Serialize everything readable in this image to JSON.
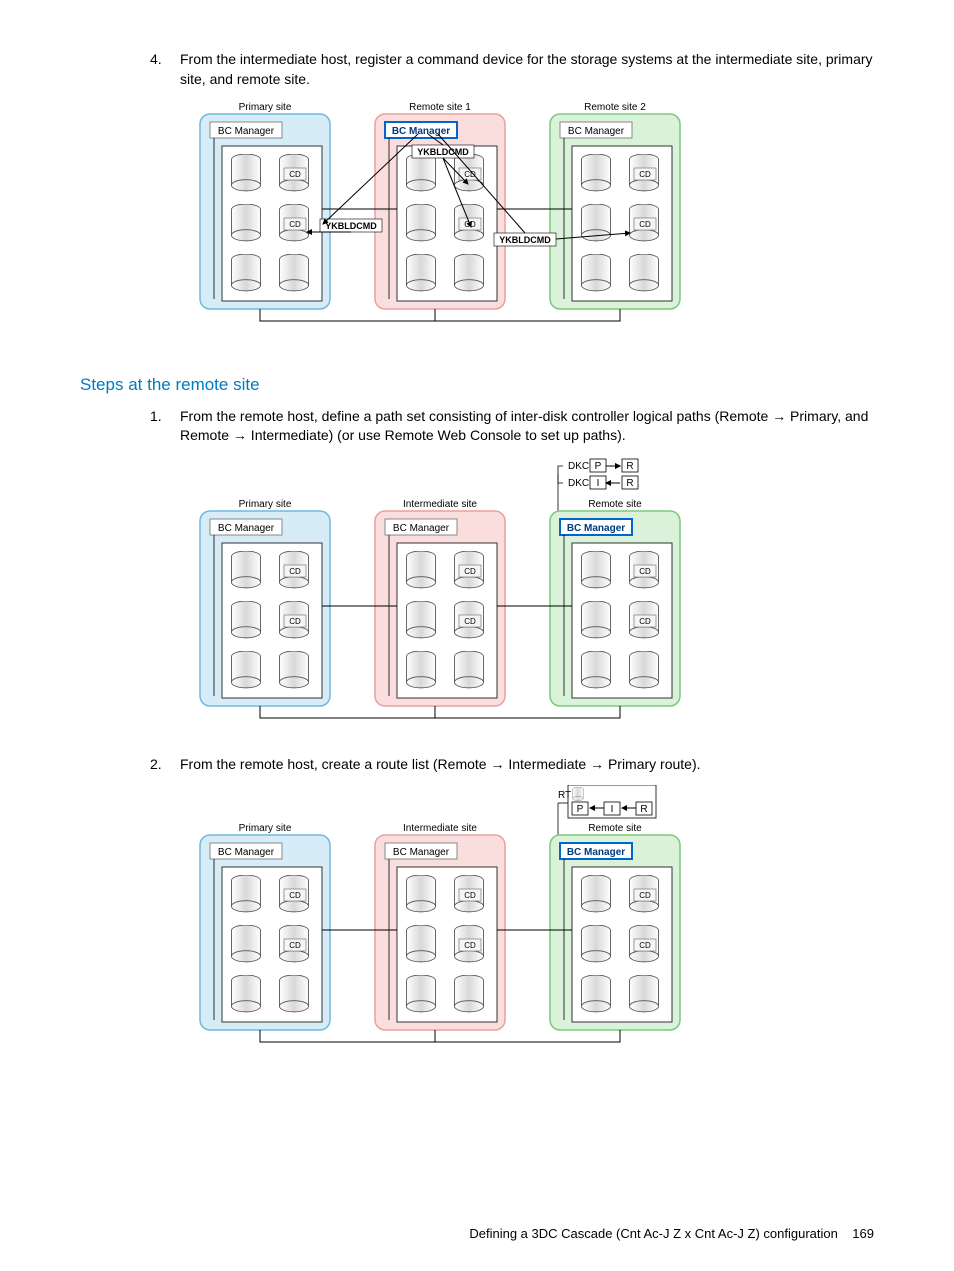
{
  "step4_num": "4.",
  "step4_text": "From the intermediate host, register a command device for the storage systems at the intermediate site, primary site, and remote site.",
  "section_heading": "Steps at the remote site",
  "remote_step1_num": "1.",
  "remote_step1_text": "From the remote host, define a path set consisting of inter-disk controller logical paths (Remote → Primary, and Remote → Intermediate) (or use Remote Web Console to set up paths).",
  "remote_step2_num": "2.",
  "remote_step2_text": "From the remote host, create a route list (Remote → Intermediate → Primary route).",
  "footer_text": "Defining a 3DC Cascade (Cnt Ac-J Z x Cnt Ac-J Z) configuration",
  "page_num": "169",
  "labels": {
    "bc_manager": "BC Manager",
    "cd": "CD",
    "ykbldcmd": "YKBLDCMD",
    "dkc": "DKC",
    "rt": "RT",
    "p": "P",
    "i": "I",
    "r": "R"
  },
  "diag1": {
    "sites": [
      "Primary site",
      "Remote site 1",
      "Remote site 2"
    ],
    "active_site": 1,
    "colors": {
      "site0": "#d6ecf7",
      "site1": "#fadede",
      "site2": "#d9f2d9",
      "border0": "#6fb8e0",
      "border1": "#e8a0a0",
      "border2": "#7ac97a",
      "active_border": "#0066cc"
    }
  },
  "diag2": {
    "sites": [
      "Primary site",
      "Intermediate site",
      "Remote site"
    ],
    "active_site": 2,
    "colors": {
      "site0": "#d6ecf7",
      "site1": "#fadede",
      "site2": "#d9f2d9",
      "border0": "#6fb8e0",
      "border1": "#e8a0a0",
      "border2": "#7ac97a",
      "active_border": "#0066cc"
    },
    "topbox_labels": [
      "DKC",
      "DKC"
    ],
    "top_right": [
      "P",
      "R",
      "I",
      "R"
    ]
  },
  "diag3": {
    "sites": [
      "Primary site",
      "Intermediate site",
      "Remote site"
    ],
    "active_site": 2,
    "colors": {
      "site0": "#d6ecf7",
      "site1": "#fadede",
      "site2": "#d9f2d9",
      "border0": "#6fb8e0",
      "border1": "#e8a0a0",
      "border2": "#7ac97a",
      "active_border": "#0066cc"
    },
    "rt_label": "RT",
    "rt_seq": [
      "P",
      "I",
      "R"
    ]
  }
}
